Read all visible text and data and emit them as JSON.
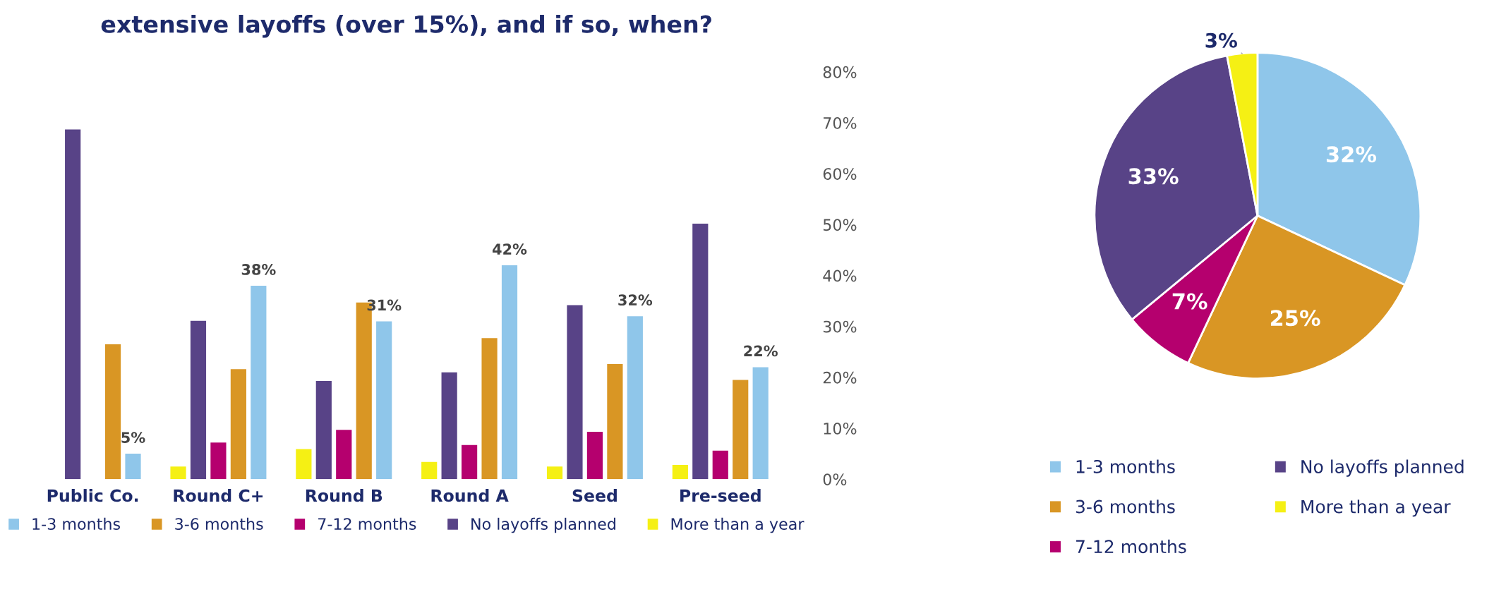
{
  "chart_data": [
    {
      "type": "bar",
      "title": "extensive layoffs (over 15%), and if so, when?",
      "categories": [
        "Public Co.",
        "Round C+",
        "Round B",
        "Round A",
        "Seed",
        "Pre-seed"
      ],
      "series": [
        {
          "name": "1-3 months",
          "color": "#8fc6ea",
          "values": [
            5,
            38,
            31,
            42,
            32,
            22
          ],
          "value_labels": [
            "5%",
            "38%",
            "31%",
            "42%",
            "32%",
            "22%"
          ]
        },
        {
          "name": "3-6 months",
          "color": "#d99624",
          "values": [
            26.5,
            21.6,
            34.7,
            27.7,
            22.6,
            19.5
          ]
        },
        {
          "name": "7-12 months",
          "color": "#b5006e",
          "values": [
            null,
            7.2,
            9.7,
            6.7,
            9.3,
            5.6
          ]
        },
        {
          "name": "No layoffs planned",
          "color": "#584387",
          "values": [
            68.7,
            31.1,
            19.3,
            21,
            34.2,
            50.2
          ]
        },
        {
          "name": "More than a year",
          "color": "#f5f014",
          "values": [
            null,
            2.5,
            5.9,
            3.4,
            2.5,
            2.8
          ]
        }
      ],
      "ylim": [
        0,
        80
      ],
      "yticks": [
        {
          "value": 0,
          "label": "0%"
        },
        {
          "value": 10,
          "label": "10%"
        },
        {
          "value": 20,
          "label": "20%"
        },
        {
          "value": 30,
          "label": "30%"
        },
        {
          "value": 40,
          "label": "40%"
        },
        {
          "value": 50,
          "label": "50%"
        },
        {
          "value": 60,
          "label": "60%"
        },
        {
          "value": 70,
          "label": "70%"
        },
        {
          "value": 80,
          "label": "80%"
        }
      ],
      "grid": false,
      "legend": "bottom"
    },
    {
      "type": "pie",
      "categories": [
        "1-3 months",
        "3-6 months",
        "7-12 months",
        "No layoffs planned",
        "More than a year"
      ],
      "values": [
        32,
        25,
        7,
        33,
        3
      ],
      "colors": [
        "#8fc6ea",
        "#d99624",
        "#b5006e",
        "#584387",
        "#f5f014"
      ],
      "value_labels": [
        "32%",
        "25%",
        "7%",
        "33%",
        "3%"
      ],
      "legend": "bottom"
    }
  ]
}
